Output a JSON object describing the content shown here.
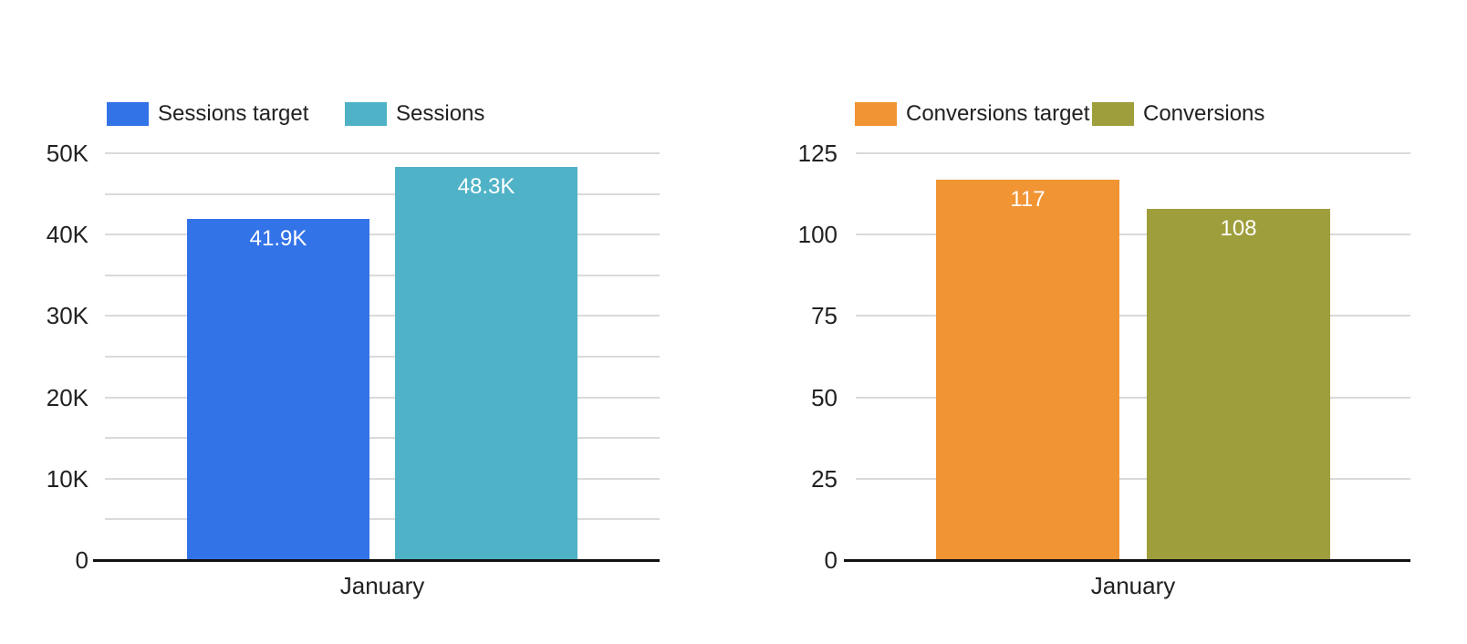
{
  "page": {
    "background": "#ffffff"
  },
  "colors": {
    "gridline": "#dadada",
    "axis_line": "#111111",
    "label_text": "#212121",
    "value_label_text": "#ffffff"
  },
  "chart_data": [
    {
      "type": "bar",
      "name": "sessions-chart",
      "title": "",
      "categories": [
        "January"
      ],
      "series": [
        {
          "name": "Sessions target",
          "color": "#3373E8",
          "values": [
            41900
          ],
          "value_labels": [
            "41.9K"
          ]
        },
        {
          "name": "Sessions",
          "color": "#50B2C7",
          "values": [
            48300
          ],
          "value_labels": [
            "48.3K"
          ]
        }
      ],
      "ylim": [
        0,
        50000
      ],
      "ytick_values": [
        0,
        10000,
        20000,
        30000,
        40000,
        50000
      ],
      "ytick_labels": [
        "0",
        "10K",
        "20K",
        "30K",
        "40K",
        "50K"
      ],
      "grid": true,
      "grid_interval": 5000,
      "legend_position": "top",
      "xlabel": "",
      "ylabel": ""
    },
    {
      "type": "bar",
      "name": "conversions-chart",
      "title": "",
      "categories": [
        "January"
      ],
      "series": [
        {
          "name": "Conversions target",
          "color": "#F09434",
          "values": [
            117
          ],
          "value_labels": [
            "117"
          ]
        },
        {
          "name": "Conversions",
          "color": "#9F9E3D",
          "values": [
            108
          ],
          "value_labels": [
            "108"
          ]
        }
      ],
      "ylim": [
        0,
        125
      ],
      "ytick_values": [
        0,
        25,
        50,
        75,
        100,
        125
      ],
      "ytick_labels": [
        "0",
        "25",
        "50",
        "75",
        "100",
        "125"
      ],
      "grid": true,
      "grid_interval": 25,
      "legend_position": "top",
      "xlabel": "",
      "ylabel": ""
    }
  ]
}
